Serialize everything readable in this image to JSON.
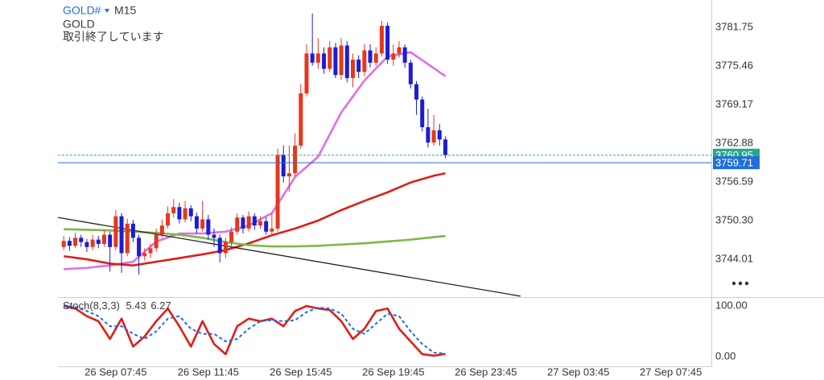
{
  "header": {
    "symbol": "GOLD#",
    "timeframe": "M15",
    "name": "GOLD",
    "status": "取引終了しています"
  },
  "chart_data": [
    {
      "type": "candlestick",
      "x": [
        "26 Sep 05:30",
        "26 Sep 05:45",
        "26 Sep 06:00",
        "26 Sep 06:15",
        "26 Sep 06:30",
        "26 Sep 06:45",
        "26 Sep 07:00",
        "26 Sep 07:15",
        "26 Sep 07:30",
        "26 Sep 07:45",
        "26 Sep 08:00",
        "26 Sep 08:15",
        "26 Sep 08:30",
        "26 Sep 08:45",
        "26 Sep 09:00",
        "26 Sep 09:15",
        "26 Sep 09:30",
        "26 Sep 09:45",
        "26 Sep 10:00",
        "26 Sep 10:15",
        "26 Sep 10:30",
        "26 Sep 10:45",
        "26 Sep 11:00",
        "26 Sep 11:15",
        "26 Sep 11:30",
        "26 Sep 11:45",
        "26 Sep 12:00",
        "26 Sep 12:15",
        "26 Sep 12:30",
        "26 Sep 12:45",
        "26 Sep 13:00",
        "26 Sep 13:15",
        "26 Sep 13:30",
        "26 Sep 13:45",
        "26 Sep 14:00",
        "26 Sep 14:15",
        "26 Sep 14:30",
        "26 Sep 14:45",
        "26 Sep 15:00",
        "26 Sep 15:15",
        "26 Sep 15:30",
        "26 Sep 15:45",
        "26 Sep 16:00",
        "26 Sep 16:15",
        "26 Sep 16:30",
        "26 Sep 16:45",
        "26 Sep 17:00",
        "26 Sep 17:15",
        "26 Sep 17:30",
        "26 Sep 17:45",
        "26 Sep 18:00",
        "26 Sep 18:15",
        "26 Sep 18:30",
        "26 Sep 18:45",
        "26 Sep 19:00",
        "26 Sep 19:15",
        "26 Sep 19:30",
        "26 Sep 19:45",
        "26 Sep 20:00",
        "26 Sep 20:15",
        "26 Sep 20:30",
        "26 Sep 20:45",
        "26 Sep 21:00",
        "26 Sep 21:15",
        "26 Sep 21:30",
        "26 Sep 21:45",
        "26 Sep 22:00"
      ],
      "open": [
        3746.0,
        3747.0,
        3746.2,
        3747.5,
        3746.8,
        3746.0,
        3747.2,
        3746.5,
        3748.0,
        3746.0,
        3751.0,
        3745.0,
        3749.8,
        3747.5,
        3744.5,
        3745.0,
        3745.8,
        3748.0,
        3749.5,
        3751.5,
        3752.5,
        3750.5,
        3752.3,
        3751.0,
        3749.0,
        3750.5,
        3748.0,
        3747.5,
        3745.0,
        3746.8,
        3748.5,
        3750.8,
        3749.0,
        3751.0,
        3749.5,
        3750.2,
        3748.5,
        3749.0,
        3761.0,
        3757.5,
        3758.0,
        3762.5,
        3771.0,
        3777.5,
        3776.0,
        3777.5,
        3775.0,
        3778.5,
        3774.0,
        3778.8,
        3773.5,
        3776.5,
        3774.5,
        3778.0,
        3776.0,
        3777.5,
        3782.0,
        3776.5,
        3777.5,
        3778.5,
        3776.0,
        3772.5,
        3770.0,
        3765.5,
        3763.0,
        3765.0,
        3763.5
      ],
      "high": [
        3747.8,
        3747.6,
        3748.3,
        3748.0,
        3747.3,
        3748.0,
        3747.8,
        3748.8,
        3748.5,
        3752.0,
        3751.5,
        3750.6,
        3750.4,
        3748.0,
        3745.8,
        3746.5,
        3749.0,
        3750.5,
        3752.6,
        3753.8,
        3753.2,
        3753.5,
        3752.8,
        3751.6,
        3753.5,
        3751.2,
        3749.0,
        3748.0,
        3747.5,
        3749.2,
        3751.5,
        3751.2,
        3751.8,
        3751.5,
        3751.0,
        3750.8,
        3751.5,
        3762.0,
        3762.5,
        3762.5,
        3764.5,
        3772.5,
        3779.0,
        3784.0,
        3780.0,
        3778.5,
        3779.5,
        3779.2,
        3780.0,
        3779.5,
        3777.5,
        3777.2,
        3779.0,
        3779.0,
        3778.5,
        3782.8,
        3782.5,
        3779.0,
        3779.5,
        3779.0,
        3776.5,
        3773.0,
        3770.5,
        3768.5,
        3767.5,
        3766.0,
        3764.0
      ],
      "low": [
        3745.5,
        3745.4,
        3745.8,
        3746.0,
        3745.2,
        3745.5,
        3745.8,
        3746.0,
        3742.0,
        3745.5,
        3741.8,
        3744.5,
        3746.8,
        3741.5,
        3743.8,
        3744.2,
        3745.2,
        3747.5,
        3749.0,
        3750.8,
        3749.8,
        3750.0,
        3750.2,
        3748.2,
        3748.5,
        3747.2,
        3746.0,
        3743.5,
        3744.2,
        3746.0,
        3748.0,
        3748.2,
        3748.5,
        3748.8,
        3749.0,
        3748.0,
        3747.8,
        3748.5,
        3756.5,
        3755.0,
        3757.5,
        3762.0,
        3770.5,
        3775.5,
        3775.0,
        3774.2,
        3774.5,
        3773.5,
        3773.2,
        3772.8,
        3772.0,
        3773.5,
        3773.8,
        3775.2,
        3775.5,
        3777.0,
        3775.8,
        3775.5,
        3776.8,
        3775.2,
        3771.8,
        3767.5,
        3764.8,
        3762.2,
        3762.5,
        3762.5,
        3760.5
      ],
      "close": [
        3747.0,
        3746.2,
        3747.5,
        3746.8,
        3746.0,
        3747.2,
        3746.5,
        3748.0,
        3746.0,
        3751.0,
        3745.0,
        3749.8,
        3747.5,
        3744.5,
        3745.0,
        3745.8,
        3748.0,
        3749.5,
        3751.5,
        3752.5,
        3750.5,
        3752.3,
        3751.0,
        3749.0,
        3750.5,
        3748.0,
        3747.5,
        3745.0,
        3746.8,
        3748.5,
        3750.8,
        3749.0,
        3751.0,
        3749.5,
        3750.2,
        3748.5,
        3749.0,
        3761.0,
        3757.5,
        3758.0,
        3762.5,
        3771.0,
        3777.5,
        3776.0,
        3777.5,
        3775.0,
        3778.5,
        3774.0,
        3778.8,
        3773.5,
        3776.5,
        3774.5,
        3778.0,
        3776.0,
        3777.5,
        3782.0,
        3776.5,
        3777.5,
        3778.5,
        3776.0,
        3772.5,
        3770.0,
        3765.5,
        3763.0,
        3765.0,
        3763.5,
        3760.95
      ],
      "up_color": "#e5371d",
      "down_color": "#1c1cd4",
      "xlim": [
        "26 Sep 05:15",
        "27 Sep 09:30"
      ],
      "xticks": [
        "26 Sep 07:45",
        "26 Sep 11:45",
        "26 Sep 15:45",
        "26 Sep 19:45",
        "26 Sep 23:45",
        "27 Sep 03:45",
        "27 Sep 07:45"
      ],
      "ylim": [
        3737.98,
        3786.2
      ],
      "yticks": [
        3744.01,
        {
          "value": 3750.3,
          "label": "3750.30"
        },
        3756.59,
        3762.88,
        3769.17,
        3775.46,
        3781.75
      ],
      "grid": true,
      "overlays": [
        {
          "color": "#df6ee8",
          "x": [
            "26 Sep 05:30",
            "26 Sep 06:30",
            "26 Sep 07:30",
            "26 Sep 08:30",
            "26 Sep 09:30",
            "26 Sep 10:30",
            "26 Sep 11:30",
            "26 Sep 12:30",
            "26 Sep 13:30",
            "26 Sep 14:30",
            "26 Sep 15:30",
            "26 Sep 16:30",
            "26 Sep 17:30",
            "26 Sep 18:30",
            "26 Sep 19:30",
            "26 Sep 20:30",
            "26 Sep 21:30",
            "26 Sep 22:00"
          ],
          "values": [
            3742.4,
            3742.6,
            3743.0,
            3743.6,
            3746.9,
            3748.2,
            3748.2,
            3748.5,
            3749.5,
            3751.5,
            3757.4,
            3760.7,
            3767.9,
            3773.1,
            3777.0,
            3777.7,
            3775.1,
            3773.8
          ]
        },
        {
          "color": "#e11d16",
          "x": [
            "26 Sep 05:30",
            "26 Sep 06:30",
            "26 Sep 07:30",
            "26 Sep 08:30",
            "26 Sep 09:30",
            "26 Sep 10:30",
            "26 Sep 11:30",
            "26 Sep 12:30",
            "26 Sep 13:30",
            "26 Sep 14:30",
            "26 Sep 15:30",
            "26 Sep 16:30",
            "26 Sep 17:30",
            "26 Sep 18:30",
            "26 Sep 19:30",
            "26 Sep 20:30",
            "26 Sep 21:30",
            "26 Sep 22:00"
          ],
          "values": [
            3744.5,
            3744.0,
            3743.3,
            3743.0,
            3743.6,
            3744.2,
            3744.8,
            3745.5,
            3746.6,
            3747.9,
            3749.0,
            3750.3,
            3752.0,
            3753.5,
            3754.9,
            3756.5,
            3757.6,
            3758.0
          ]
        },
        {
          "color": "#7cb84a",
          "x": [
            "26 Sep 05:30",
            "26 Sep 06:30",
            "26 Sep 07:30",
            "26 Sep 08:30",
            "26 Sep 09:30",
            "26 Sep 10:30",
            "26 Sep 11:30",
            "26 Sep 12:30",
            "26 Sep 13:30",
            "26 Sep 14:30",
            "26 Sep 15:30",
            "26 Sep 16:30",
            "26 Sep 17:30",
            "26 Sep 18:30",
            "26 Sep 19:30",
            "26 Sep 20:30",
            "26 Sep 21:30",
            "26 Sep 22:00"
          ],
          "values": [
            3748.9,
            3748.8,
            3748.7,
            3748.5,
            3748.3,
            3748.0,
            3747.5,
            3746.8,
            3746.3,
            3746.1,
            3746.1,
            3746.2,
            3746.4,
            3746.6,
            3746.9,
            3747.2,
            3747.6,
            3747.8
          ]
        },
        {
          "color": "#222222",
          "x": [
            "26 Sep 05:15",
            "27 Sep 01:15"
          ],
          "values": [
            3750.8,
            3738.0
          ]
        }
      ],
      "price_lines": [
        {
          "value": 3760.95,
          "color": "#2aa68f",
          "dashed": true
        },
        {
          "value": 3759.71,
          "color": "#1f6fdc",
          "dashed": false
        }
      ]
    },
    {
      "type": "line",
      "title": "Stoch(8,3,3)",
      "x": [
        "26 Sep 05:30",
        "26 Sep 06:00",
        "26 Sep 06:30",
        "26 Sep 07:00",
        "26 Sep 07:30",
        "26 Sep 08:00",
        "26 Sep 08:30",
        "26 Sep 09:00",
        "26 Sep 09:30",
        "26 Sep 10:00",
        "26 Sep 10:30",
        "26 Sep 11:00",
        "26 Sep 11:30",
        "26 Sep 12:00",
        "26 Sep 12:30",
        "26 Sep 13:00",
        "26 Sep 13:30",
        "26 Sep 14:00",
        "26 Sep 14:30",
        "26 Sep 15:00",
        "26 Sep 15:30",
        "26 Sep 16:00",
        "26 Sep 16:30",
        "26 Sep 17:00",
        "26 Sep 17:30",
        "26 Sep 18:00",
        "26 Sep 18:30",
        "26 Sep 19:00",
        "26 Sep 19:30",
        "26 Sep 20:00",
        "26 Sep 20:30",
        "26 Sep 21:00",
        "26 Sep 21:30",
        "26 Sep 22:00"
      ],
      "series": [
        {
          "color": "#e11d16",
          "dashed": false,
          "values": [
            100,
            95,
            80,
            70,
            35,
            75,
            20,
            40,
            70,
            95,
            60,
            20,
            70,
            25,
            5,
            60,
            75,
            70,
            75,
            60,
            90,
            100,
            95,
            92,
            70,
            35,
            55,
            90,
            95,
            55,
            30,
            5,
            2,
            5.43
          ]
        },
        {
          "color": "#1f6fdc",
          "dashed": true,
          "values": [
            100,
            98,
            90,
            80,
            60,
            60,
            45,
            35,
            50,
            75,
            80,
            55,
            45,
            45,
            30,
            35,
            55,
            70,
            72,
            70,
            72,
            88,
            97,
            95,
            85,
            55,
            45,
            65,
            85,
            80,
            50,
            25,
            8,
            6.27
          ]
        }
      ],
      "xlim": [
        "26 Sep 05:15",
        "27 Sep 09:30"
      ],
      "ylim": [
        -19,
        116
      ],
      "yticks": [
        {
          "value": 100,
          "label": "100.00"
        },
        {
          "value": 0,
          "label": "0.00"
        }
      ],
      "grid": true
    }
  ]
}
